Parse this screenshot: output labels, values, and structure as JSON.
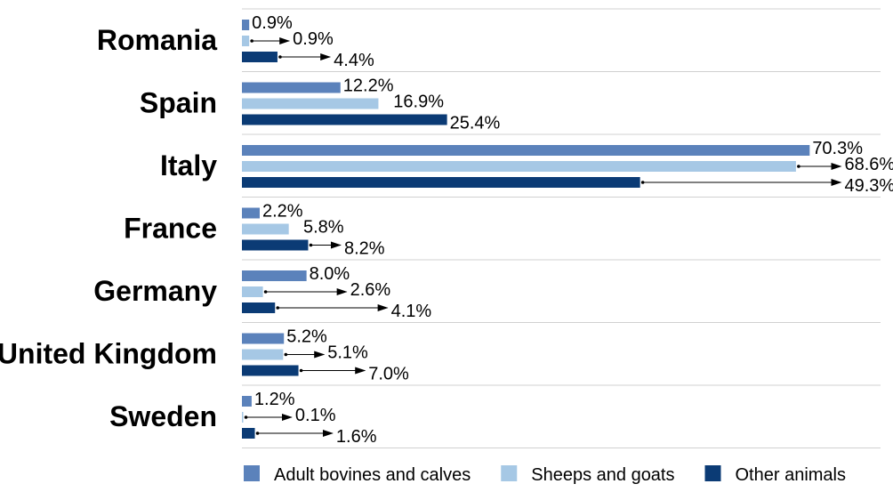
{
  "chart_data": {
    "type": "bar",
    "orientation": "horizontal",
    "categories": [
      "Romania",
      "Spain",
      "Italy",
      "France",
      "Germany",
      "United Kingdom",
      "Sweden"
    ],
    "series": [
      {
        "name": "Adult bovines and calves",
        "color": "#5b82bb",
        "values": [
          0.9,
          12.2,
          70.3,
          2.2,
          8.0,
          5.2,
          1.2
        ],
        "labels": [
          "0.9%",
          "12.2%",
          "70.3%",
          "2.2%",
          "8.0%",
          "5.2%",
          "1.2%"
        ]
      },
      {
        "name": "Sheeps and goats",
        "color": "#a6c8e5",
        "values": [
          0.9,
          16.9,
          68.6,
          5.8,
          2.6,
          5.1,
          0.1
        ],
        "labels": [
          "0.9%",
          "16.9%",
          "68.6%",
          "5.8%",
          "2.6%",
          "5.1%",
          "0.1%"
        ]
      },
      {
        "name": "Other animals",
        "color": "#0b3b75",
        "values": [
          4.4,
          25.4,
          49.3,
          8.2,
          4.1,
          7.0,
          1.6
        ],
        "labels": [
          "4.4%",
          "25.4%",
          "49.3%",
          "8.2%",
          "4.1%",
          "7.0%",
          "1.6%"
        ]
      }
    ],
    "xlim": [
      0,
      80
    ],
    "grid": "horizontal separators between categories",
    "legend_position": "bottom",
    "title": "",
    "xlabel": "",
    "ylabel": ""
  }
}
